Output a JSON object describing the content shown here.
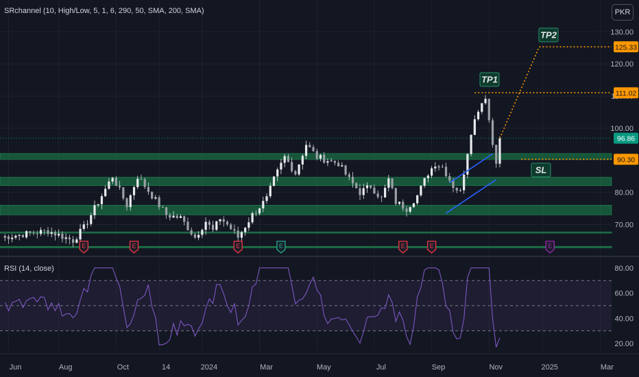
{
  "indicator_legend": "SRchannel (10, High/Low, 5, 1, 6, 290, 50, SMA, 200, SMA)",
  "rsi_legend": "RSI (14, close)",
  "currency": "PKR",
  "colors": {
    "background": "#131722",
    "up_candle": "#26a69a",
    "down_candle": "#ef5350",
    "sr_zone": "#1b8a4e",
    "rsi_line": "#7e57c2",
    "target_line": "#ff9800",
    "price_badge": "#089981",
    "earnings_red": "#f23645",
    "earnings_green": "#22ab94",
    "earnings_purple": "#9c27b0",
    "channel": "#2962ff"
  },
  "annotations": {
    "tp1": "TP1",
    "tp2": "TP2",
    "sl": "SL"
  },
  "earnings_marker": "E",
  "chart_data": [
    {
      "type": "candlestick",
      "title": "",
      "x_ticks": [
        "Jun",
        "Aug",
        "Oct",
        "14",
        "2024",
        "Mar",
        "May",
        "Jul",
        "Sep",
        "Nov",
        "2025",
        "Mar"
      ],
      "y_ticks": [
        70,
        80,
        90,
        100,
        110,
        120,
        130
      ],
      "y_tick_labels": [
        "70.00",
        "80.00",
        "90.00",
        "100.00",
        "110.00",
        "120.00",
        "130.00"
      ],
      "ylim": [
        60.5,
        133.5
      ],
      "current_price": 96.86,
      "current_price_label": "96.86",
      "levels": [
        {
          "name": "TP2",
          "value": 125.33,
          "label": "125.33"
        },
        {
          "name": "TP1",
          "value": 111.02,
          "label": "111.02"
        },
        {
          "name": "SL",
          "value": 90.3,
          "label": "90.30"
        }
      ],
      "sr_zones": [
        [
          90.3,
          92.1
        ],
        [
          82.1,
          84.7
        ],
        [
          73.0,
          76.0
        ],
        [
          67.3,
          67.7
        ],
        [
          62.7,
          63.2
        ]
      ],
      "price_path_keypoints": [
        [
          0,
          66
        ],
        [
          13,
          68
        ],
        [
          20,
          65
        ],
        [
          23,
          69
        ],
        [
          28,
          79
        ],
        [
          31,
          85
        ],
        [
          35,
          76
        ],
        [
          38,
          85
        ],
        [
          42,
          79
        ],
        [
          46,
          73
        ],
        [
          50,
          72
        ],
        [
          54,
          66
        ],
        [
          57,
          71
        ],
        [
          59,
          68
        ],
        [
          61,
          72
        ],
        [
          63,
          70
        ],
        [
          66,
          66
        ],
        [
          70,
          73
        ],
        [
          74,
          78
        ],
        [
          76,
          84
        ],
        [
          79,
          91
        ],
        [
          82,
          86
        ],
        [
          85,
          95
        ],
        [
          88,
          91
        ],
        [
          91,
          90
        ],
        [
          94,
          89
        ],
        [
          97,
          84
        ],
        [
          100,
          80
        ],
        [
          103,
          82
        ],
        [
          106,
          78
        ],
        [
          108,
          84
        ],
        [
          110,
          77
        ],
        [
          113,
          75
        ],
        [
          116,
          79
        ],
        [
          119,
          86
        ],
        [
          121,
          89
        ],
        [
          123,
          88
        ],
        [
          126,
          82
        ],
        [
          128,
          80
        ],
        [
          131,
          99
        ],
        [
          133,
          106
        ],
        [
          135,
          110
        ],
        [
          137,
          95
        ],
        [
          138,
          90
        ],
        [
          139,
          97
        ]
      ],
      "earnings_events": [
        {
          "position": 23,
          "color": "red"
        },
        {
          "position": 37,
          "color": "red"
        },
        {
          "position": 66,
          "color": "red"
        },
        {
          "position": 78,
          "color": "green"
        },
        {
          "position": 112,
          "color": "red"
        },
        {
          "position": 120,
          "color": "red"
        },
        {
          "position": 153,
          "color": "purple"
        }
      ]
    },
    {
      "type": "line",
      "title": "",
      "series": [
        {
          "name": "RSI (14, close)"
        }
      ],
      "y_ticks": [
        20,
        40,
        60,
        80
      ],
      "y_tick_labels": [
        "20.00",
        "40.00",
        "60.00",
        "80.00"
      ],
      "ylim": [
        14,
        87
      ],
      "band": [
        30,
        70
      ],
      "mid_line": 50,
      "overbought": 70,
      "oversold": 30
    }
  ]
}
